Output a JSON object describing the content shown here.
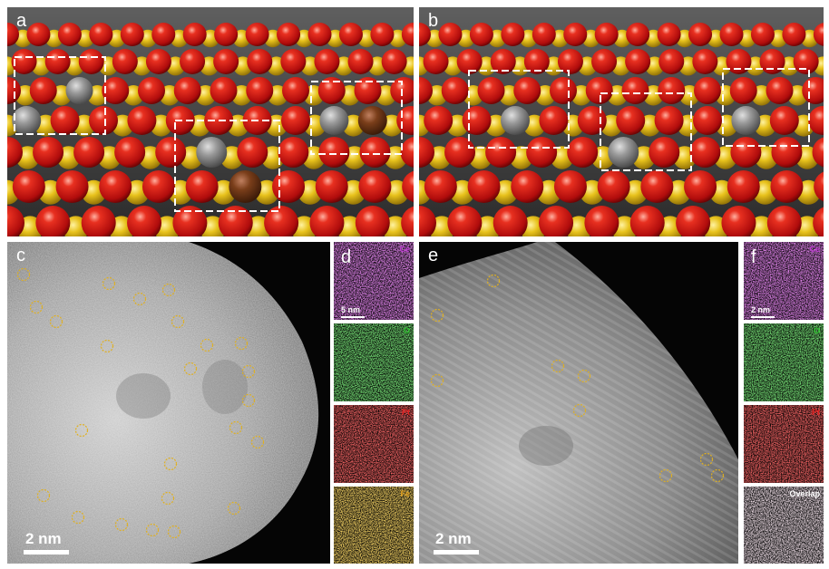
{
  "panels": {
    "a": {
      "label": "a"
    },
    "b": {
      "label": "b"
    },
    "c": {
      "label": "c",
      "scale_bar": "2 nm"
    },
    "d": {
      "label": "d",
      "scale_bar": "5 nm",
      "maps": [
        {
          "element": "Ce",
          "color": "#c13bd6"
        },
        {
          "element": "O",
          "color": "#2fc02f"
        },
        {
          "element": "Pt",
          "color": "#e02020"
        },
        {
          "element": "Fe",
          "color": "#e0a020"
        }
      ]
    },
    "e": {
      "label": "e",
      "scale_bar": "2 nm"
    },
    "f": {
      "label": "f",
      "scale_bar": "2 nm",
      "maps": [
        {
          "element": "Ce",
          "color": "#c13bd6"
        },
        {
          "element": "O",
          "color": "#2fc02f"
        },
        {
          "element": "Pt",
          "color": "#e02020"
        },
        {
          "element": "Overlap",
          "color": "#ffffff"
        }
      ]
    }
  },
  "colors": {
    "oxygen_atom": "#d21414",
    "cerium_atom": "#e8c21c",
    "platinum_atom": "#8c8c8c",
    "iron_atom": "#7a3e1a",
    "single_atom_marker": "#e0b020"
  }
}
